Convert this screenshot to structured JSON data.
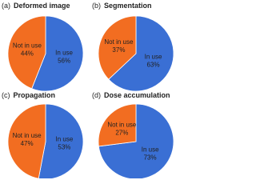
{
  "chart_data": [
    {
      "type": "pie",
      "panel": "(a)",
      "title": "Deformed image",
      "categories": [
        "In use",
        "Not in use"
      ],
      "values": [
        56,
        44
      ],
      "value_labels": [
        "56%",
        "44%"
      ],
      "colors": [
        "#3a6fd4",
        "#f26d21"
      ]
    },
    {
      "type": "pie",
      "panel": "(b)",
      "title": "Segmentation",
      "categories": [
        "In use",
        "Not in use"
      ],
      "values": [
        63,
        37
      ],
      "value_labels": [
        "63%",
        "37%"
      ],
      "colors": [
        "#3a6fd4",
        "#f26d21"
      ]
    },
    {
      "type": "pie",
      "panel": "(c)",
      "title": "Propagation",
      "categories": [
        "In use",
        "Not in use"
      ],
      "values": [
        53,
        47
      ],
      "value_labels": [
        "53%",
        "47%"
      ],
      "colors": [
        "#3a6fd4",
        "#f26d21"
      ]
    },
    {
      "type": "pie",
      "panel": "(d)",
      "title": "Dose accumulation",
      "categories": [
        "In use",
        "Not in use"
      ],
      "values": [
        73,
        27
      ],
      "value_labels": [
        "73%",
        "27%"
      ],
      "colors": [
        "#3a6fd4",
        "#f26d21"
      ]
    }
  ]
}
